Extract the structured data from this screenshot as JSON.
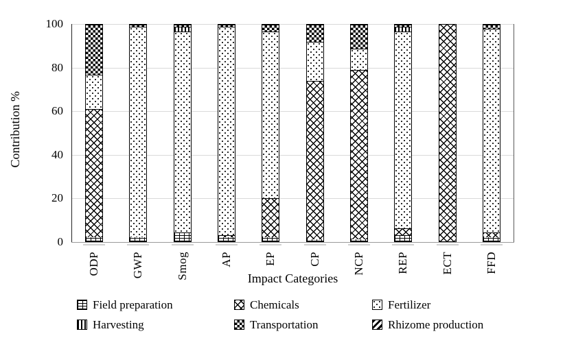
{
  "chart_data": {
    "type": "bar",
    "stacked": true,
    "orientation": "vertical",
    "title": "",
    "xlabel": "Impact Categories",
    "ylabel": "Contribution %",
    "ylim": [
      0,
      100
    ],
    "yticks": [
      0,
      20,
      40,
      60,
      80,
      100
    ],
    "grid": "horizontal-light-gray",
    "legend_position": "bottom, 2 rows x 3 columns",
    "categories": [
      "ODP",
      "GWP",
      "Smog",
      "AP",
      "EP",
      "CP",
      "NCP",
      "REP",
      "ECT",
      "FFD"
    ],
    "series": [
      {
        "name": "Field preparation",
        "key": "field_preparation",
        "pattern": "grid-hatch",
        "values": [
          2,
          2,
          4,
          2,
          2,
          1,
          1,
          3,
          0,
          2
        ]
      },
      {
        "name": "Chemicals",
        "key": "chemicals",
        "pattern": "diagonal-crosshatch",
        "values": [
          59,
          0,
          0,
          1,
          18,
          73,
          78,
          3,
          100,
          2
        ]
      },
      {
        "name": "Fertilizer",
        "key": "fertilizer",
        "pattern": "dots",
        "values": [
          16,
          97,
          93,
          96,
          77,
          18,
          10,
          91,
          0,
          94
        ]
      },
      {
        "name": "Harvesting",
        "key": "harvesting",
        "pattern": "vertical-lines",
        "values": [
          0,
          0,
          2,
          0,
          0,
          0,
          0,
          2,
          0,
          0
        ]
      },
      {
        "name": "Transportation",
        "key": "transportation",
        "pattern": "checkerboard",
        "values": [
          23,
          1,
          1,
          1,
          3,
          8,
          11,
          1,
          0,
          2
        ]
      },
      {
        "name": "Rhizome production",
        "key": "rhizome_production",
        "pattern": "thick-backslash",
        "values": [
          0,
          0,
          0,
          0,
          0,
          0,
          0,
          0,
          0,
          0
        ]
      }
    ]
  },
  "colors": {
    "background": "#ffffff",
    "bar_fill": "#ffffff",
    "bar_outline": "#000000",
    "gridline": "#d9d9d9",
    "x_axis": "#9a9a9a",
    "y_axis": "#222222",
    "text": "#000000"
  }
}
